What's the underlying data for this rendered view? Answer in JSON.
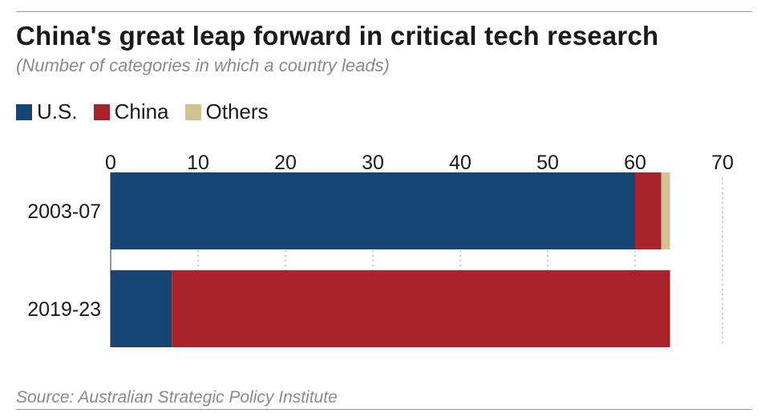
{
  "chart_data": {
    "type": "bar",
    "orientation": "horizontal",
    "stacked": true,
    "title": "China's great leap forward in critical tech research",
    "subtitle": "(Number of categories in which a country leads)",
    "categories": [
      "2003-07",
      "2019-23"
    ],
    "series": [
      {
        "name": "U.S.",
        "color": "#164573",
        "values": [
          60,
          7
        ]
      },
      {
        "name": "China",
        "color": "#a8222a",
        "values": [
          3,
          57
        ]
      },
      {
        "name": "Others",
        "color": "#d1c391",
        "values": [
          1,
          0
        ]
      }
    ],
    "xlim": [
      0,
      70
    ],
    "xticks": [
      0,
      10,
      20,
      30,
      40,
      50,
      60,
      70
    ],
    "xtick_labels": [
      "0",
      "10",
      "20",
      "30",
      "40",
      "50",
      "60",
      "70"
    ],
    "xlabel": "",
    "ylabel": "",
    "grid": "dotted vertical",
    "legend_position": "top-left",
    "source": "Source: Australian Strategic Policy Institute"
  }
}
